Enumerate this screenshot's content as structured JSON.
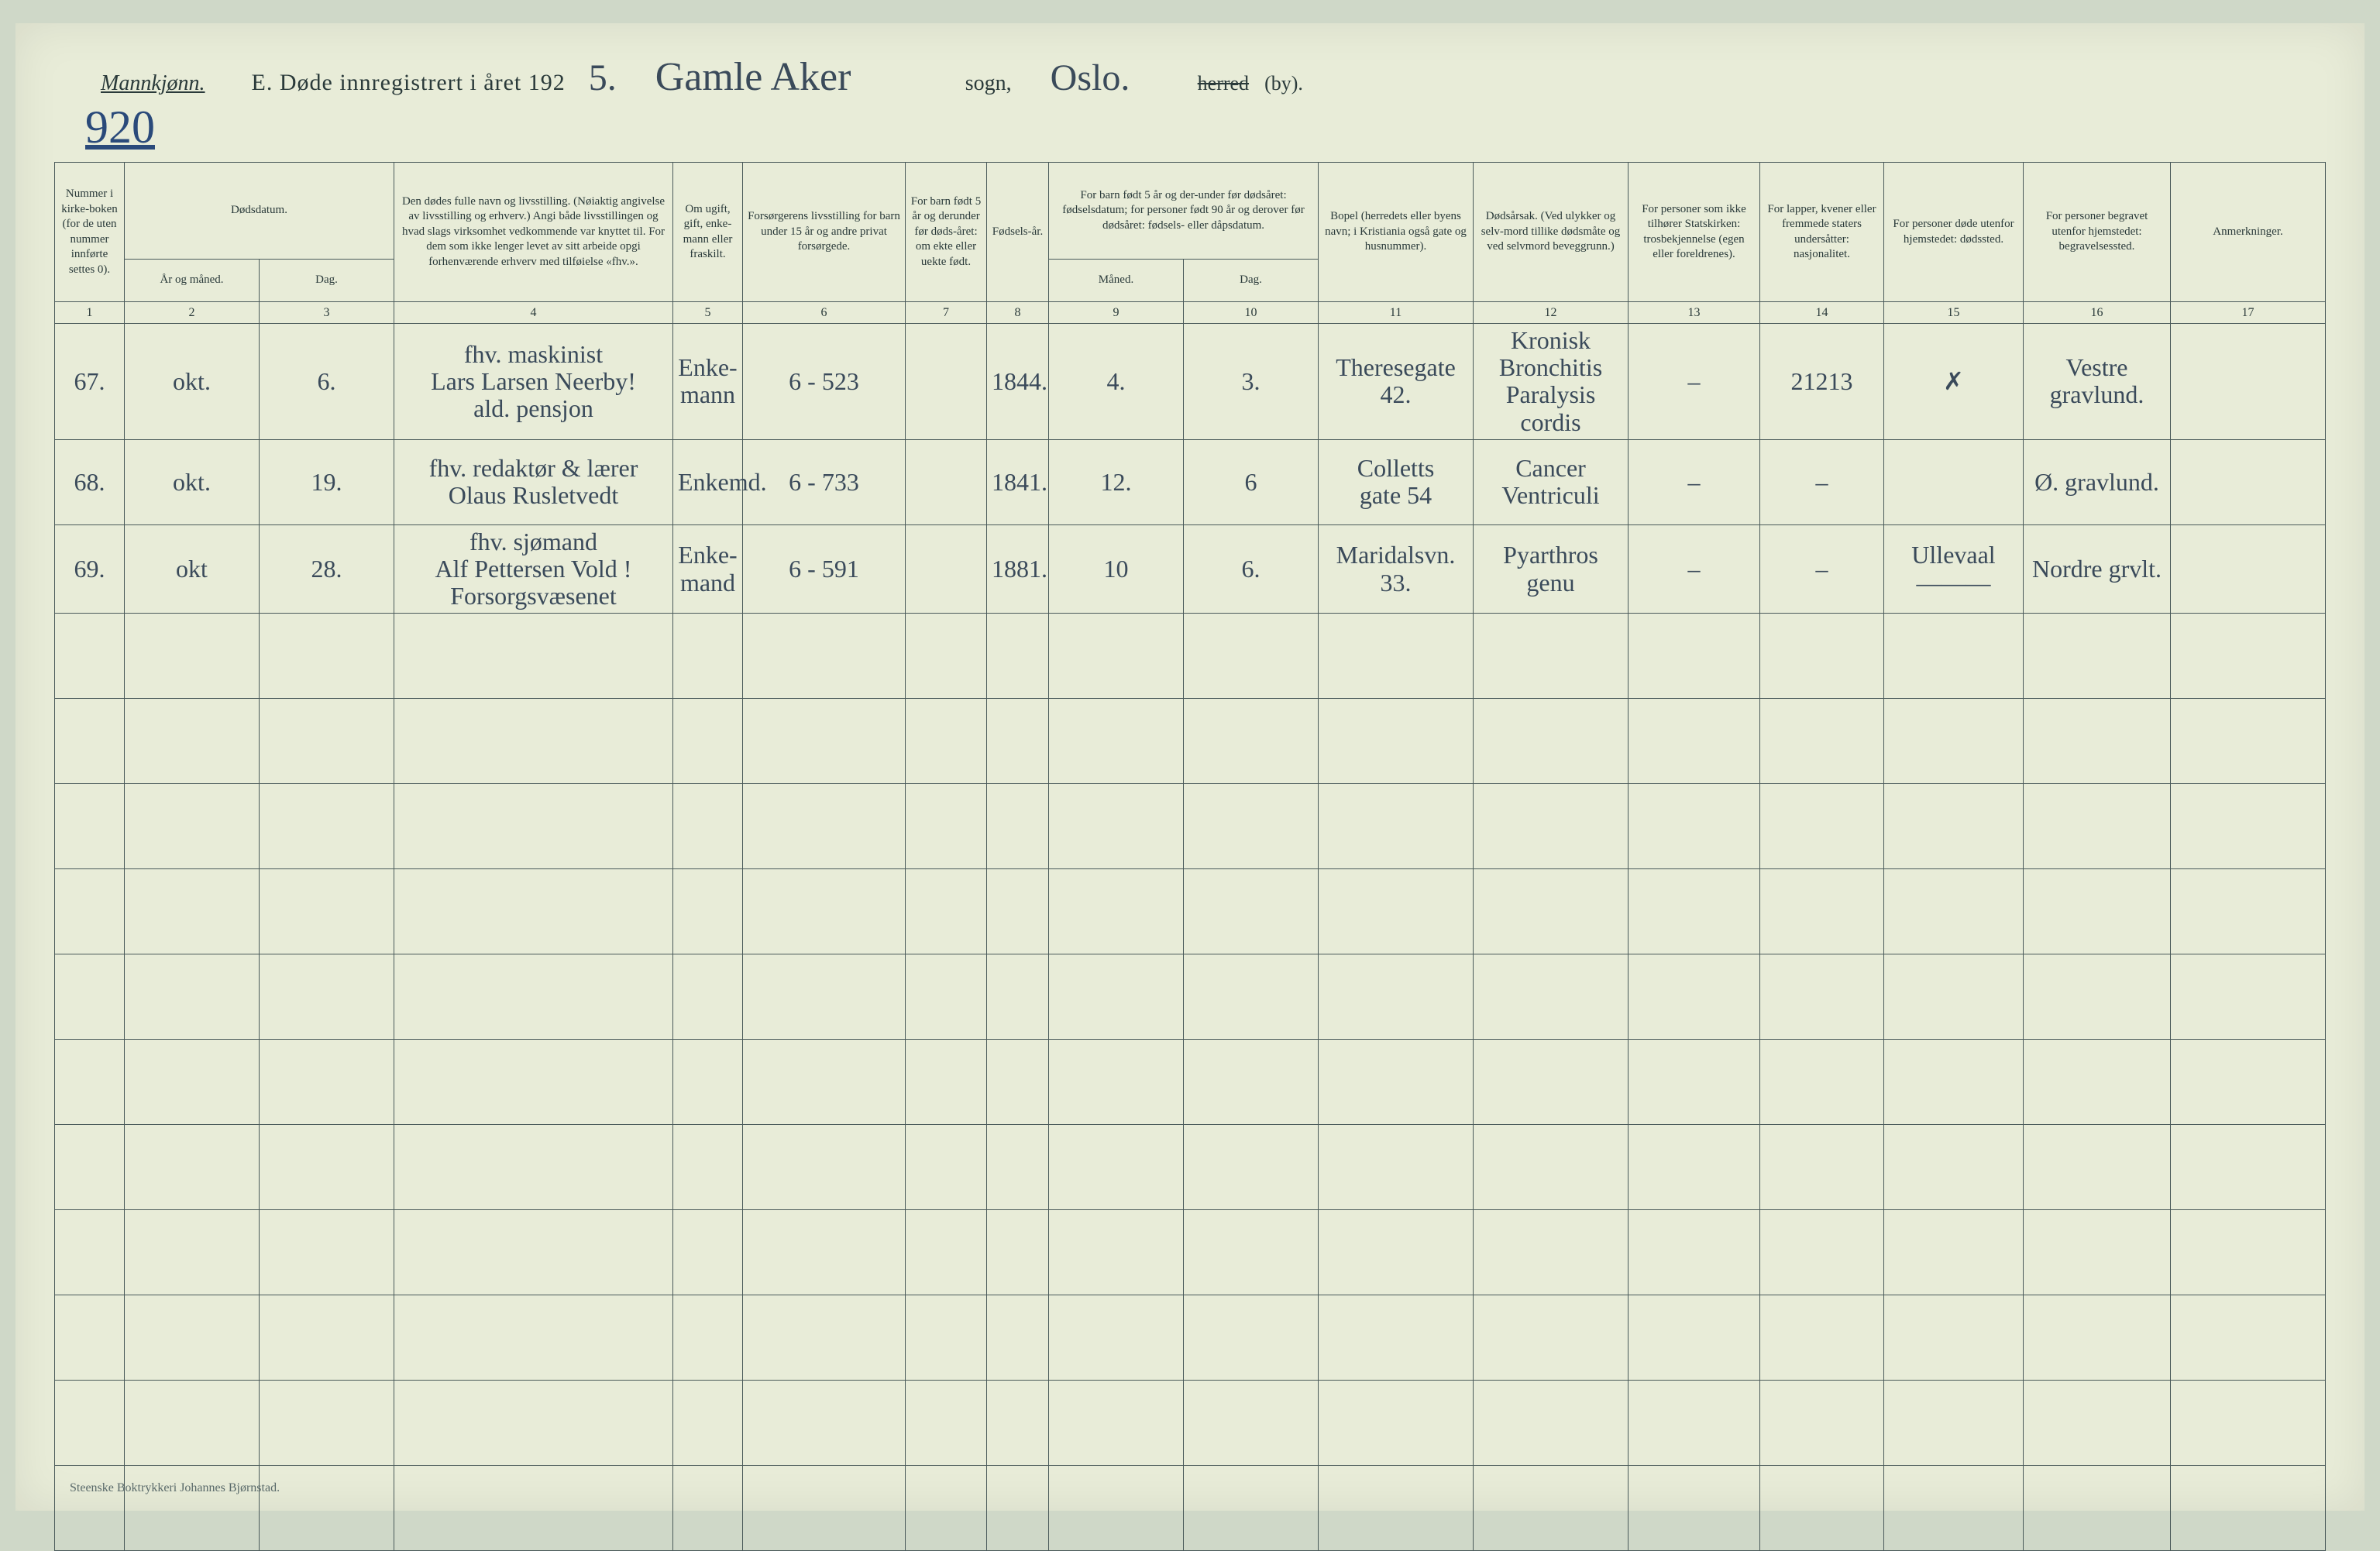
{
  "header": {
    "gender": "Mannkjønn.",
    "title_prefix": "E.  Døde innregistrert i året 192",
    "year_suffix": "5.",
    "parish": "Gamle Aker",
    "sogn_label": "sogn,",
    "city": "Oslo.",
    "herred": "herred",
    "by": "(by).",
    "page_number": "920"
  },
  "columns": {
    "c1": "Nummer i kirke-boken (for de uten nummer innførte settes 0).",
    "c2_3": "Dødsdatum.",
    "c2": "År og måned.",
    "c3": "Dag.",
    "c4": "Den dødes fulle navn og livsstilling. (Nøiaktig angivelse av livsstilling og erhverv.) Angi både livsstillingen og hvad slags virksomhet vedkommende var knyttet til. For dem som ikke lenger levet av sitt arbeide opgi forhenværende erhverv med tilføielse «fhv.».",
    "c5": "Om ugift, gift, enke-mann eller fraskilt.",
    "c6": "Forsørgerens livsstilling for barn under 15 år og andre privat forsørgede.",
    "c7": "For barn født 5 år og derunder før døds-året: om ekte eller uekte født.",
    "c8": "Fødsels-år.",
    "c9_10": "For barn født 5 år og der-under før dødsåret: fødselsdatum; for personer født 90 år og derover før dødsåret: fødsels- eller dåpsdatum.",
    "c9": "Måned.",
    "c10": "Dag.",
    "c11": "Bopel (herredets eller byens navn; i Kristiania også gate og husnummer).",
    "c12": "Dødsårsak. (Ved ulykker og selv-mord tillike dødsmåte og ved selvmord beveggrunn.)",
    "c13": "For personer som ikke tilhører Statskirken: trosbekjennelse (egen eller foreldrenes).",
    "c14": "For lapper, kvener eller fremmede staters undersåtter: nasjonalitet.",
    "c15": "For personer døde utenfor hjemstedet: dødssted.",
    "c16": "For personer begravet utenfor hjemstedet: begravelsessted.",
    "c17": "Anmerkninger."
  },
  "colnums": [
    "1",
    "2",
    "3",
    "4",
    "5",
    "6",
    "7",
    "8",
    "9",
    "10",
    "11",
    "12",
    "13",
    "14",
    "15",
    "16",
    "17"
  ],
  "sub": {
    "maned": "Måned.",
    "dag": "Dag."
  },
  "rows": [
    {
      "num": "67.",
      "month": "okt.",
      "day": "6.",
      "name": "fhv. maskinist\nLars Larsen Neerby!\nald. pensjon",
      "married": "Enke-\nmann",
      "provider": "6 - 523",
      "ekte": "",
      "birthyear": "1844.",
      "bmonth": "4.",
      "bday": "3.",
      "residence": "Theresegate\n42.",
      "cause": "Kronisk\nBronchitis\nParalysis cordis",
      "faith": "–",
      "nation": "21213",
      "deathplace": "✗",
      "burial": "Vestre\ngravlund.",
      "remarks": ""
    },
    {
      "num": "68.",
      "month": "okt.",
      "day": "19.",
      "name": "fhv. redaktør & lærer\nOlaus Rusletvedt",
      "married": "Enkemd.",
      "provider": "6 - 733",
      "ekte": "",
      "birthyear": "1841.",
      "bmonth": "12.",
      "bday": "6",
      "residence": "Colletts\ngate 54",
      "cause": "Cancer\nVentriculi",
      "faith": "–",
      "nation": "–",
      "deathplace": "",
      "burial": "Ø. gravlund.",
      "remarks": ""
    },
    {
      "num": "69.",
      "month": "okt",
      "day": "28.",
      "name": "fhv. sjømand\nAlf Pettersen Vold !\nForsorgsvæsenet",
      "married": "Enke-\nmand",
      "provider": "6 - 591",
      "ekte": "",
      "birthyear": "1881.",
      "bmonth": "10",
      "bday": "6.",
      "residence": "Maridalsvn.\n33.",
      "cause": "Pyarthros\ngenu",
      "faith": "–",
      "nation": "–",
      "deathplace": "Ullevaal\n———",
      "burial": "Nordre grvlt.",
      "remarks": ""
    }
  ],
  "empty_rows": 11,
  "footer": "Steenske Boktrykkeri Johannes Bjørnstad."
}
